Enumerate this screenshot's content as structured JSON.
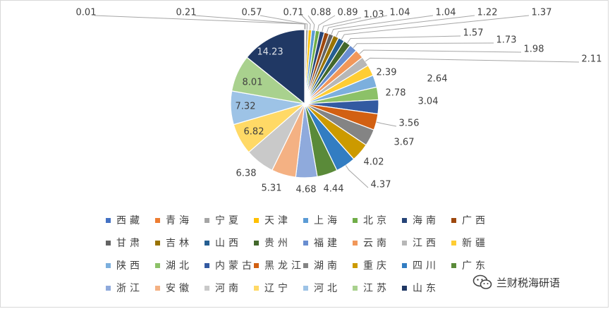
{
  "chart_data": {
    "type": "pie",
    "title": "",
    "categories": [
      "西藏",
      "青海",
      "宁夏",
      "天津",
      "上海",
      "北京",
      "海南",
      "广西",
      "甘肃",
      "吉林",
      "山西",
      "贵州",
      "福建",
      "云南",
      "江西",
      "新疆",
      "陕西",
      "湖北",
      "内蒙古",
      "黑龙江",
      "湖南",
      "重庆",
      "四川",
      "广东",
      "浙江",
      "安徽",
      "河南",
      "辽宁",
      "河北",
      "江苏",
      "山东"
    ],
    "values": [
      0.01,
      0.21,
      0.57,
      0.71,
      0.88,
      0.89,
      1.03,
      1.04,
      1.04,
      1.22,
      1.37,
      1.57,
      1.73,
      1.98,
      2.11,
      2.39,
      2.64,
      2.78,
      3.04,
      3.56,
      3.67,
      4.02,
      4.37,
      4.44,
      4.68,
      5.31,
      6.38,
      6.82,
      7.32,
      8.01,
      14.23
    ],
    "value_labels": [
      "0.01",
      "0.21",
      "0.57",
      "0.71",
      "0.88",
      "0.89",
      "1.03",
      "1.04",
      "1.04",
      "1.22",
      "1.37",
      "1.57",
      "1.73",
      "1.98",
      "2.11",
      "2.39",
      "2.64",
      "2.78",
      "3.04",
      "3.56",
      "3.67",
      "4.02",
      "4.37",
      "4.44",
      "4.68",
      "5.31",
      "6.38",
      "6.82",
      "7.32",
      "8.01",
      "14.23"
    ],
    "colors": [
      "#4472C4",
      "#ED7D31",
      "#A5A5A5",
      "#FFC000",
      "#5B9BD5",
      "#70AD47",
      "#264478",
      "#9E480E",
      "#636363",
      "#997300",
      "#255E91",
      "#43682B",
      "#698ED0",
      "#F1975A",
      "#B7B7B7",
      "#FFCD33",
      "#7CAFDD",
      "#8CC168",
      "#335AA1",
      "#D26012",
      "#848484",
      "#CC9A00",
      "#327DC2",
      "#5A8A39",
      "#8FAADC",
      "#F4B183",
      "#C9C9C9",
      "#FFD966",
      "#9DC3E6",
      "#A9D18E",
      "#203864"
    ],
    "legend": [
      "西藏",
      "青海",
      "宁夏",
      "天津",
      "上海",
      "北京",
      "海南",
      "广西",
      "甘肃",
      "吉林",
      "山西",
      "贵州",
      "福建",
      "云南",
      "江西",
      "新疆",
      "陕西",
      "湖北",
      "内蒙古",
      "黑龙江",
      "湖南",
      "重庆",
      "四川",
      "广东",
      "浙江",
      "安徽",
      "河南",
      "辽宁",
      "河北",
      "江苏",
      "山东"
    ],
    "legend_position": "bottom"
  },
  "watermark": {
    "text": "兰财税海研语"
  }
}
